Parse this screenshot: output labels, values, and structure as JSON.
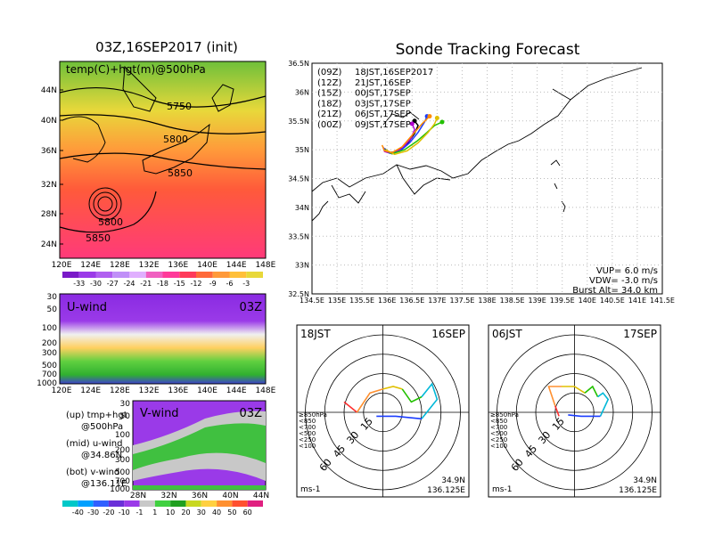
{
  "left": {
    "title": "03Z,16SEP2017 (init)",
    "map_label": "temp(C)+hgt(m)@500hPa",
    "contours": [
      "5750",
      "5800",
      "5850",
      "5800",
      "5850"
    ],
    "lat_ticks": [
      "44N",
      "40N",
      "36N",
      "32N",
      "28N",
      "24N"
    ],
    "lon_ticks": [
      "120E",
      "124E",
      "128E",
      "132E",
      "136E",
      "140E",
      "144E",
      "148E"
    ],
    "temp_colorbar": [
      "-33",
      "-30",
      "-27",
      "-24",
      "-21",
      "-18",
      "-15",
      "-12",
      "-9",
      "-6",
      "-3"
    ],
    "u_wind": {
      "label": "U-wind",
      "time": "03Z",
      "p_ticks": [
        "30",
        "50",
        "100",
        "200",
        "300",
        "500",
        "700",
        "1000"
      ]
    },
    "v_wind": {
      "label": "V-wind",
      "time": "03Z",
      "p_ticks": [
        "30",
        "50",
        "100",
        "200",
        "300",
        "500",
        "700",
        "1000"
      ],
      "lat_ticks": [
        "28N",
        "32N",
        "36N",
        "40N",
        "44N"
      ]
    },
    "legend": {
      "up1": "(up) tmp+hgt",
      "up2": "@500hPa",
      "mid1": "(mid) u-wind",
      "mid2": "@34.86N",
      "bot1": "(bot) v-wind",
      "bot2": "@136.11E"
    },
    "wind_colorbar": [
      "-40",
      "-30",
      "-20",
      "-10",
      "-1",
      "1",
      "10",
      "20",
      "30",
      "40",
      "50",
      "60"
    ]
  },
  "chart_data": {
    "type": "scatter",
    "title": "Sonde Tracking Forecast",
    "lon_ticks": [
      "134.5E",
      "135E",
      "135.5E",
      "136E",
      "136.5E",
      "137E",
      "137.5E",
      "138E",
      "138.5E",
      "139E",
      "139.5E",
      "140E",
      "140.5E",
      "141E",
      "141.5E"
    ],
    "lat_ticks": [
      "36.5N",
      "36N",
      "35.5N",
      "35N",
      "34.5N",
      "34N",
      "33.5N",
      "33N",
      "32.5N"
    ],
    "xlim": [
      134.5,
      141.5
    ],
    "ylim": [
      32.5,
      36.5
    ],
    "launches": [
      {
        "run": "(09Z)",
        "time": "18JST,16SEP2017",
        "color": "#000000",
        "lon": [
          135.95,
          136.05,
          136.2,
          136.4,
          136.55,
          136.62,
          136.55
        ],
        "lat": [
          35.02,
          34.95,
          34.97,
          35.1,
          35.28,
          35.42,
          35.5
        ]
      },
      {
        "run": "(12Z)",
        "time": "21JST,16SEP",
        "color": "#b000d0",
        "lon": [
          135.92,
          135.95,
          136.1,
          136.3,
          136.48,
          136.55,
          136.5
        ],
        "lat": [
          35.05,
          34.97,
          34.93,
          35.02,
          35.2,
          35.35,
          35.45
        ]
      },
      {
        "run": "(15Z)",
        "time": "00JST,17SEP",
        "color": "#1a3cff",
        "lon": [
          135.93,
          136.05,
          136.25,
          136.45,
          136.62,
          136.75,
          136.8
        ],
        "lat": [
          35.03,
          34.94,
          34.97,
          35.12,
          35.3,
          35.48,
          35.58
        ]
      },
      {
        "run": "(18Z)",
        "time": "03JST,17SEP",
        "color": "#22c000",
        "lon": [
          135.95,
          136.1,
          136.35,
          136.6,
          136.8,
          136.95,
          137.1
        ],
        "lat": [
          35.0,
          34.93,
          35.0,
          35.15,
          35.3,
          35.42,
          35.48
        ]
      },
      {
        "run": "(21Z)",
        "time": "06JST,17SEP",
        "color": "#e0c000",
        "lon": [
          135.97,
          136.15,
          136.4,
          136.62,
          136.82,
          136.95,
          137.0
        ],
        "lat": [
          35.0,
          34.92,
          34.98,
          35.12,
          35.3,
          35.45,
          35.55
        ]
      },
      {
        "run": "(00Z)",
        "time": "09JST,17SEP",
        "color": "#ff8c00",
        "lon": [
          135.9,
          135.95,
          136.1,
          136.3,
          136.5,
          136.7,
          136.85
        ],
        "lat": [
          35.08,
          34.98,
          34.95,
          35.05,
          35.25,
          35.45,
          35.58
        ]
      }
    ],
    "info": {
      "vup": "VUP= 6.0 m/s",
      "vdw": "VDW= -3.0 m/s",
      "burst": "Burst Alt= 34.0 km"
    }
  },
  "hodographs": [
    {
      "time": "18JST",
      "date": "16SEP",
      "rings": [
        "15",
        "30",
        "45",
        "60"
      ],
      "unit": "ms-1",
      "lat": "34.9N",
      "lon": "136.125E",
      "levels": [
        "≥850hPa",
        "<850",
        "<700",
        "<500",
        "<250",
        "<100"
      ]
    },
    {
      "time": "06JST",
      "date": "17SEP",
      "rings": [
        "15",
        "30",
        "45",
        "60"
      ],
      "unit": "ms-1",
      "lat": "34.9N",
      "lon": "136.125E",
      "levels": [
        "≥850hPa",
        "<850",
        "<700",
        "<500",
        "<250",
        "<100"
      ]
    }
  ]
}
